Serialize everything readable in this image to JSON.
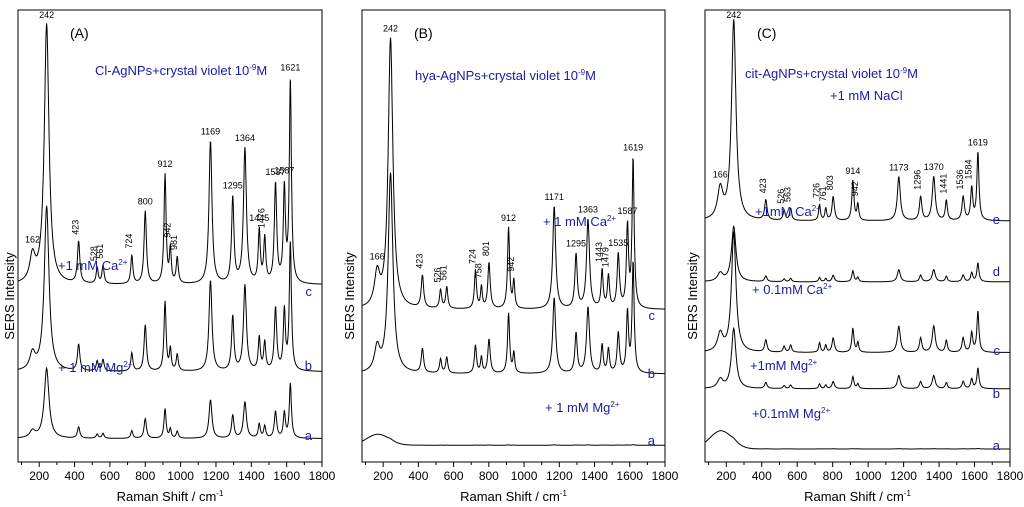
{
  "chart_data": [
    {
      "type": "line",
      "panel_label": "(A)",
      "title": "Cl-AgNPs+crystal violet 10",
      "title_sup": "-9",
      "title_tail": "M",
      "title2": "",
      "xlabel": "Raman Shift / cm",
      "xlabel_sup": "-1",
      "ylabel": "SERS Intensity",
      "xlim": [
        80,
        1800
      ],
      "xticks": [
        "200",
        "400",
        "600",
        "800",
        "1000",
        "1200",
        "1400",
        "1600",
        "1800"
      ],
      "series": [
        {
          "letter": "c",
          "label": "+1 mM Ca",
          "label_sup": "2+"
        },
        {
          "letter": "b",
          "label": "+ 1 mM Mg",
          "label_sup": "2+"
        },
        {
          "letter": "a",
          "label": "",
          "label_sup": ""
        }
      ],
      "peaks": [
        {
          "x": 162,
          "amp": 0.1,
          "w": 18
        },
        {
          "x": 242,
          "amp": 1.0,
          "w": 16
        },
        {
          "x": 423,
          "amp": 0.16,
          "w": 8
        },
        {
          "x": 528,
          "amp": 0.06,
          "w": 7
        },
        {
          "x": 561,
          "amp": 0.07,
          "w": 7
        },
        {
          "x": 724,
          "amp": 0.11,
          "w": 7
        },
        {
          "x": 800,
          "amp": 0.28,
          "w": 8
        },
        {
          "x": 912,
          "amp": 0.42,
          "w": 7
        },
        {
          "x": 942,
          "amp": 0.13,
          "w": 6
        },
        {
          "x": 981,
          "amp": 0.1,
          "w": 7
        },
        {
          "x": 1169,
          "amp": 0.55,
          "w": 10
        },
        {
          "x": 1295,
          "amp": 0.33,
          "w": 8
        },
        {
          "x": 1364,
          "amp": 0.52,
          "w": 10
        },
        {
          "x": 1445,
          "amp": 0.2,
          "w": 7
        },
        {
          "x": 1476,
          "amp": 0.17,
          "w": 7
        },
        {
          "x": 1537,
          "amp": 0.38,
          "w": 8
        },
        {
          "x": 1587,
          "amp": 0.36,
          "w": 7
        },
        {
          "x": 1621,
          "amp": 0.78,
          "w": 7
        }
      ],
      "peak_labels": [
        "162",
        "242",
        "423",
        "528",
        "561",
        "724",
        "800",
        "912",
        "942",
        "981",
        "1169",
        "1295",
        "1364",
        "1445",
        "1476",
        "1537",
        "1587",
        "1621"
      ]
    },
    {
      "type": "line",
      "panel_label": "(B)",
      "title": "hya-AgNPs+crystal violet 10",
      "title_sup": "-9",
      "title_tail": "M",
      "title2": "",
      "xlabel": "Raman Shift / cm",
      "xlabel_sup": "-1",
      "ylabel": "SERS Intensity",
      "xlim": [
        80,
        1800
      ],
      "xticks": [
        "200",
        "400",
        "600",
        "800",
        "1000",
        "1200",
        "1400",
        "1600",
        "1800"
      ],
      "series": [
        {
          "letter": "c",
          "label": "+ 1 mM Ca",
          "label_sup": "2+"
        },
        {
          "letter": "b",
          "label": "+ 1 mM Mg",
          "label_sup": "2+"
        },
        {
          "letter": "a",
          "label": "",
          "label_sup": ""
        }
      ],
      "peaks": [
        {
          "x": 166,
          "amp": 0.12,
          "w": 18
        },
        {
          "x": 242,
          "amp": 1.0,
          "w": 16
        },
        {
          "x": 423,
          "amp": 0.12,
          "w": 8
        },
        {
          "x": 526,
          "amp": 0.07,
          "w": 7
        },
        {
          "x": 561,
          "amp": 0.08,
          "w": 7
        },
        {
          "x": 724,
          "amp": 0.14,
          "w": 7
        },
        {
          "x": 758,
          "amp": 0.08,
          "w": 6
        },
        {
          "x": 801,
          "amp": 0.17,
          "w": 8
        },
        {
          "x": 912,
          "amp": 0.3,
          "w": 7
        },
        {
          "x": 942,
          "amp": 0.1,
          "w": 6
        },
        {
          "x": 1171,
          "amp": 0.38,
          "w": 10
        },
        {
          "x": 1295,
          "amp": 0.2,
          "w": 8
        },
        {
          "x": 1363,
          "amp": 0.33,
          "w": 10
        },
        {
          "x": 1443,
          "amp": 0.14,
          "w": 7
        },
        {
          "x": 1479,
          "amp": 0.12,
          "w": 7
        },
        {
          "x": 1535,
          "amp": 0.2,
          "w": 8
        },
        {
          "x": 1587,
          "amp": 0.3,
          "w": 7
        },
        {
          "x": 1619,
          "amp": 0.55,
          "w": 7
        }
      ],
      "peak_labels": [
        "166",
        "242",
        "423",
        "526",
        "561",
        "724",
        "758",
        "801",
        "912",
        "942",
        "1171",
        "1295",
        "1363",
        "1443",
        "1479",
        "1535",
        "1587",
        "1619"
      ]
    },
    {
      "type": "line",
      "panel_label": "(C)",
      "title": "cit-AgNPs+crystal violet 10",
      "title_sup": "-9",
      "title_tail": "M",
      "title2": "+1 mM NaCl",
      "xlabel": "Raman Shift / cm",
      "xlabel_sup": "-1",
      "ylabel": "SERS Intensity",
      "xlim": [
        80,
        1800
      ],
      "xticks": [
        "200",
        "400",
        "600",
        "800",
        "1000",
        "1200",
        "1400",
        "1600",
        "1800"
      ],
      "series": [
        {
          "letter": "e",
          "label": "+1mM Ca",
          "label_sup": "2+"
        },
        {
          "letter": "d",
          "label": "+ 0.1mM Ca",
          "label_sup": "2+"
        },
        {
          "letter": "c",
          "label": "+1mM Mg",
          "label_sup": "2+"
        },
        {
          "letter": "b",
          "label": "+0.1mM Mg",
          "label_sup": "2+"
        },
        {
          "letter": "a",
          "label": "",
          "label_sup": ""
        }
      ],
      "peaks": [
        {
          "x": 166,
          "amp": 0.15,
          "w": 18
        },
        {
          "x": 242,
          "amp": 1.0,
          "w": 15
        },
        {
          "x": 423,
          "amp": 0.1,
          "w": 8
        },
        {
          "x": 526,
          "amp": 0.05,
          "w": 7
        },
        {
          "x": 563,
          "amp": 0.06,
          "w": 7
        },
        {
          "x": 726,
          "amp": 0.08,
          "w": 6
        },
        {
          "x": 761,
          "amp": 0.06,
          "w": 6
        },
        {
          "x": 803,
          "amp": 0.12,
          "w": 8
        },
        {
          "x": 914,
          "amp": 0.2,
          "w": 7
        },
        {
          "x": 942,
          "amp": 0.08,
          "w": 6
        },
        {
          "x": 1173,
          "amp": 0.22,
          "w": 10
        },
        {
          "x": 1296,
          "amp": 0.12,
          "w": 8
        },
        {
          "x": 1370,
          "amp": 0.22,
          "w": 10
        },
        {
          "x": 1441,
          "amp": 0.1,
          "w": 7
        },
        {
          "x": 1536,
          "amp": 0.12,
          "w": 8
        },
        {
          "x": 1584,
          "amp": 0.16,
          "w": 7
        },
        {
          "x": 1619,
          "amp": 0.34,
          "w": 7
        }
      ],
      "peak_labels": [
        "166",
        "242",
        "423",
        "526",
        "563",
        "726",
        "761",
        "803",
        "914",
        "942",
        "1173",
        "1296",
        "1370",
        "1441",
        "1536",
        "1584",
        "1619"
      ]
    }
  ],
  "colors": {
    "axis": "#000000",
    "trace": "#000000",
    "annotation_blue": "#1a1aa6"
  }
}
